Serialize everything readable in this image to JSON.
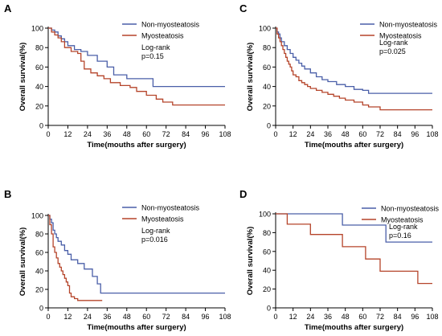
{
  "colors": {
    "non_myosteatosis": "#4a5fa8",
    "myosteatosis": "#b5442a",
    "axis": "#000000"
  },
  "chart_data": [
    {
      "panel_label": "A",
      "type": "line",
      "step": true,
      "xlabel": "Time(mouths after surgery)",
      "ylabel": "Overall survival(%)",
      "xlim": [
        0,
        108
      ],
      "ylim": [
        0,
        100
      ],
      "xticks": [
        0,
        12,
        24,
        36,
        48,
        60,
        72,
        84,
        96,
        108
      ],
      "yticks": [
        0,
        20,
        40,
        60,
        80,
        100
      ],
      "legend_position": "top-right",
      "annotation": [
        "Log-rank",
        "p=0.15"
      ],
      "series": [
        {
          "name": "Non-myosteatosis",
          "color_key": "non_myosteatosis",
          "x": [
            0,
            2,
            4,
            6,
            8,
            10,
            12,
            16,
            20,
            24,
            30,
            36,
            40,
            48,
            64,
            108
          ],
          "y": [
            100,
            98,
            96,
            92,
            89,
            86,
            82,
            78,
            76,
            72,
            66,
            60,
            52,
            48,
            40,
            40
          ]
        },
        {
          "name": "Myosteatosis",
          "color_key": "myosteatosis",
          "x": [
            0,
            2,
            4,
            6,
            8,
            10,
            14,
            18,
            20,
            22,
            26,
            30,
            34,
            38,
            44,
            50,
            54,
            60,
            66,
            70,
            76,
            108
          ],
          "y": [
            100,
            96,
            93,
            90,
            86,
            80,
            76,
            74,
            66,
            58,
            54,
            51,
            48,
            44,
            41,
            39,
            35,
            31,
            27,
            24,
            21,
            21
          ]
        }
      ]
    },
    {
      "panel_label": "B",
      "type": "line",
      "step": true,
      "xlabel": "Time(mouths after surgery)",
      "ylabel": "Overall survival(%)",
      "xlim": [
        0,
        108
      ],
      "ylim": [
        0,
        100
      ],
      "xticks": [
        0,
        12,
        24,
        36,
        48,
        60,
        72,
        84,
        96,
        108
      ],
      "yticks": [
        0,
        20,
        40,
        60,
        80,
        100
      ],
      "legend_position": "top-right",
      "annotation": [
        "Log-rank",
        "p=0.016"
      ],
      "series": [
        {
          "name": "Non-myosteatosis",
          "color_key": "non_myosteatosis",
          "x": [
            0,
            1,
            2,
            3,
            4,
            5,
            6,
            8,
            10,
            12,
            14,
            18,
            22,
            27,
            30,
            32,
            108
          ],
          "y": [
            100,
            96,
            92,
            84,
            80,
            76,
            72,
            68,
            62,
            58,
            52,
            48,
            42,
            34,
            26,
            16,
            16
          ]
        },
        {
          "name": "Myosteatosis",
          "color_key": "myosteatosis",
          "x": [
            0,
            1,
            2,
            3,
            4,
            5,
            6,
            7,
            8,
            9,
            10,
            11,
            12,
            13,
            14,
            16,
            18,
            24,
            30,
            33
          ],
          "y": [
            100,
            90,
            80,
            66,
            60,
            54,
            48,
            44,
            40,
            36,
            32,
            28,
            24,
            16,
            12,
            10,
            8,
            8,
            8,
            8
          ]
        }
      ]
    },
    {
      "panel_label": "C",
      "type": "line",
      "step": true,
      "xlabel": "Time(mouths after surgery)",
      "ylabel": "Overall survival(%)",
      "xlim": [
        0,
        108
      ],
      "ylim": [
        0,
        100
      ],
      "xticks": [
        0,
        12,
        24,
        36,
        48,
        60,
        72,
        84,
        96,
        108
      ],
      "yticks": [
        0,
        20,
        40,
        60,
        80,
        100
      ],
      "legend_position": "top-right",
      "annotation": [
        "Log-rank",
        "p=0.025"
      ],
      "series": [
        {
          "name": "Non-myosteatosis",
          "color_key": "non_myosteatosis",
          "x": [
            0,
            1,
            2,
            3,
            4,
            6,
            8,
            10,
            12,
            14,
            16,
            18,
            20,
            24,
            28,
            32,
            36,
            42,
            48,
            54,
            60,
            64,
            108
          ],
          "y": [
            100,
            96,
            94,
            90,
            86,
            82,
            78,
            74,
            70,
            67,
            64,
            61,
            58,
            54,
            50,
            47,
            45,
            42,
            40,
            37,
            36,
            33,
            33
          ]
        },
        {
          "name": "Myosteatosis",
          "color_key": "myosteatosis",
          "x": [
            0,
            1,
            2,
            3,
            4,
            5,
            6,
            7,
            8,
            9,
            10,
            11,
            12,
            14,
            16,
            18,
            20,
            22,
            24,
            28,
            32,
            36,
            40,
            44,
            48,
            54,
            60,
            64,
            72,
            108
          ],
          "y": [
            100,
            94,
            90,
            86,
            82,
            78,
            74,
            70,
            66,
            63,
            60,
            56,
            52,
            50,
            46,
            44,
            42,
            40,
            38,
            36,
            34,
            32,
            30,
            28,
            26,
            24,
            21,
            19,
            16,
            16
          ]
        }
      ]
    },
    {
      "panel_label": "D",
      "type": "line",
      "step": true,
      "xlabel": "Time(mouths after surgery)",
      "ylabel": "Overall survival(%)",
      "xlim": [
        0,
        108
      ],
      "ylim": [
        0,
        100
      ],
      "xticks": [
        0,
        12,
        24,
        36,
        48,
        60,
        72,
        84,
        96,
        108
      ],
      "yticks": [
        0,
        20,
        40,
        60,
        80,
        100
      ],
      "legend_position": "top-right",
      "annotation": [
        "Log-rank",
        "p=0.16"
      ],
      "series": [
        {
          "name": "Non-myosteatosis",
          "color_key": "non_myosteatosis",
          "x": [
            0,
            46,
            76,
            108
          ],
          "y": [
            100,
            88,
            70,
            70
          ]
        },
        {
          "name": "Myosteatosis",
          "color_key": "myosteatosis",
          "x": [
            0,
            8,
            24,
            46,
            62,
            72,
            98,
            108
          ],
          "y": [
            100,
            89,
            78,
            65,
            52,
            39,
            26,
            26
          ]
        }
      ]
    }
  ]
}
